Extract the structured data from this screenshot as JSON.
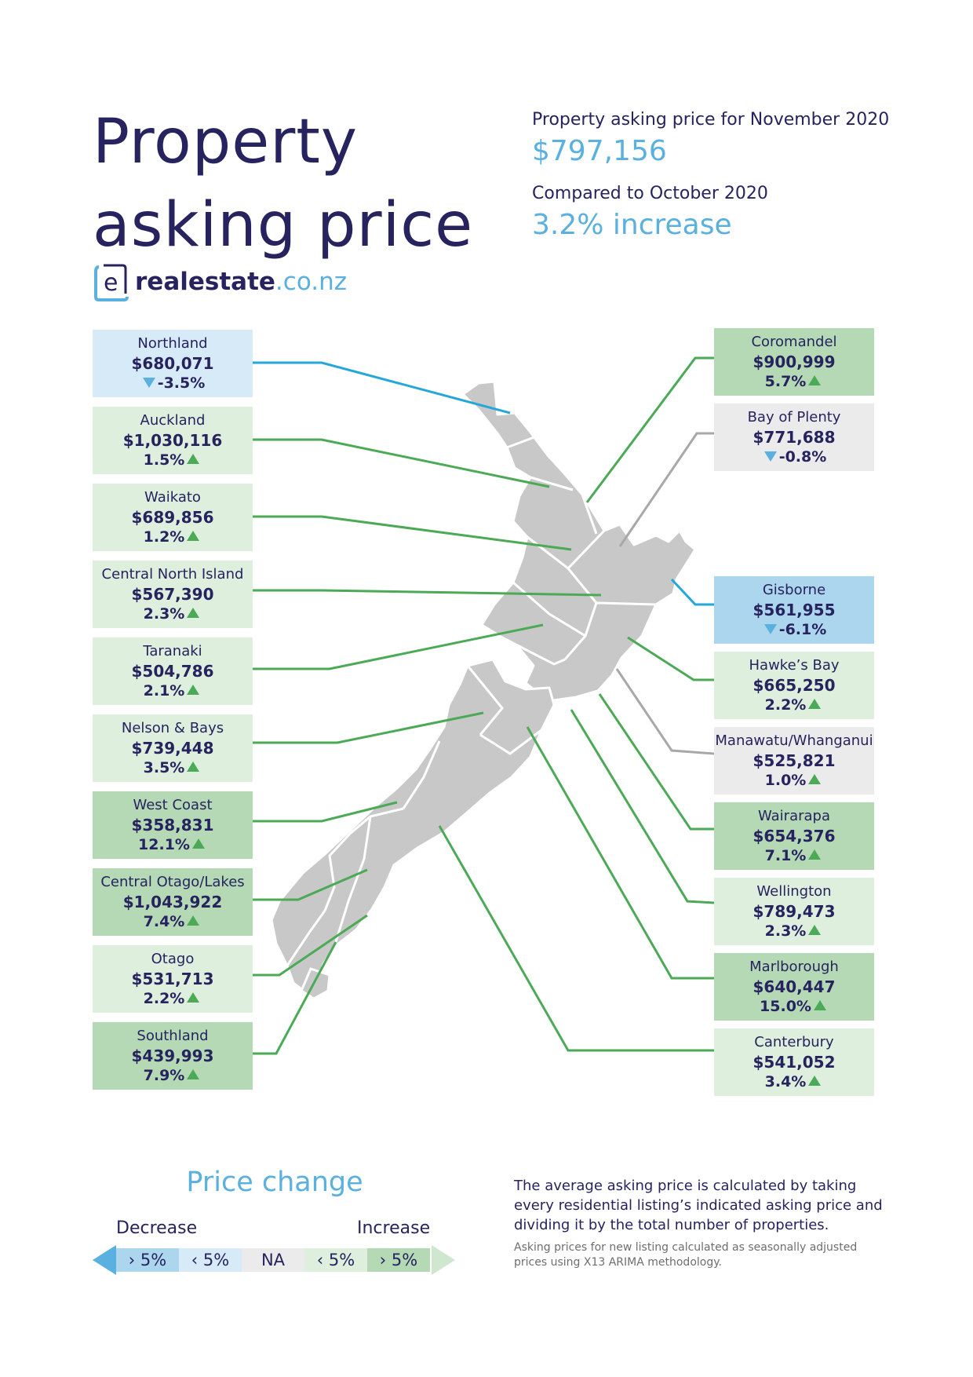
{
  "title": {
    "line1": "Property",
    "line2": "asking price"
  },
  "summary": {
    "asking_label": "Property asking price for November 2020",
    "asking_value": "$797,156",
    "compare_label": "Compared to October 2020",
    "compare_value": "3.2% increase"
  },
  "logo": {
    "name": "realestate",
    "tld": ".co.nz",
    "mark": "e"
  },
  "colors": {
    "decrease_strong": "#acd5ee",
    "decrease_mild": "#d6eaf7",
    "na": "#ebebeb",
    "increase_mild": "#deefdd",
    "increase_strong": "#b5d9b5",
    "line_green": "#4caa57",
    "line_blue": "#25a7d9",
    "line_grey": "#a8a8a8",
    "map_fill": "#c8c8c8",
    "navy": "#26235f",
    "accent_blue": "#5ab0df"
  },
  "regions_left": [
    {
      "name": "Northland",
      "price": "$680,071",
      "change": "-3.5%",
      "direction": "down",
      "category": "decrease_mild"
    },
    {
      "name": "Auckland",
      "price": "$1,030,116",
      "change": "1.5%",
      "direction": "up",
      "category": "increase_mild"
    },
    {
      "name": "Waikato",
      "price": "$689,856",
      "change": "1.2%",
      "direction": "up",
      "category": "increase_mild"
    },
    {
      "name": "Central North Island",
      "price": "$567,390",
      "change": "2.3%",
      "direction": "up",
      "category": "increase_mild"
    },
    {
      "name": "Taranaki",
      "price": "$504,786",
      "change": "2.1%",
      "direction": "up",
      "category": "increase_mild"
    },
    {
      "name": "Nelson & Bays",
      "price": "$739,448",
      "change": "3.5%",
      "direction": "up",
      "category": "increase_mild"
    },
    {
      "name": "West Coast",
      "price": "$358,831",
      "change": "12.1%",
      "direction": "up",
      "category": "increase_strong"
    },
    {
      "name": "Central Otago/Lakes",
      "price": "$1,043,922",
      "change": "7.4%",
      "direction": "up",
      "category": "increase_strong"
    },
    {
      "name": "Otago",
      "price": "$531,713",
      "change": "2.2%",
      "direction": "up",
      "category": "increase_mild"
    },
    {
      "name": "Southland",
      "price": "$439,993",
      "change": "7.9%",
      "direction": "up",
      "category": "increase_strong"
    }
  ],
  "regions_right": [
    {
      "name": "Coromandel",
      "price": "$900,999",
      "change": "5.7%",
      "direction": "up",
      "category": "increase_strong"
    },
    {
      "name": "Bay of Plenty",
      "price": "$771,688",
      "change": "-0.8%",
      "direction": "down",
      "category": "na"
    },
    {
      "name": "Gisborne",
      "price": "$561,955",
      "change": "-6.1%",
      "direction": "down",
      "category": "decrease_strong"
    },
    {
      "name": "Hawke’s Bay",
      "price": "$665,250",
      "change": "2.2%",
      "direction": "up",
      "category": "increase_mild"
    },
    {
      "name": "Manawatu/Whanganui",
      "price": "$525,821",
      "change": "1.0%",
      "direction": "up",
      "category": "na"
    },
    {
      "name": "Wairarapa",
      "price": "$654,376",
      "change": "7.1%",
      "direction": "up",
      "category": "increase_strong"
    },
    {
      "name": "Wellington",
      "price": "$789,473",
      "change": "2.3%",
      "direction": "up",
      "category": "increase_mild"
    },
    {
      "name": "Marlborough",
      "price": "$640,447",
      "change": "15.0%",
      "direction": "up",
      "category": "increase_strong"
    },
    {
      "name": "Canterbury",
      "price": "$541,052",
      "change": "3.4%",
      "direction": "up",
      "category": "increase_mild"
    }
  ],
  "legend": {
    "title": "Price change",
    "decrease_label": "Decrease",
    "increase_label": "Increase",
    "cells": [
      "› 5%",
      "‹ 5%",
      "NA",
      "‹ 5%",
      "› 5%"
    ]
  },
  "note": {
    "main": "The average asking price is calculated by taking every residential listing’s indicated asking price and dividing it by the total number of properties.",
    "small": "Asking prices for new listing calculated as seasonally adjusted prices using X13 ARIMA methodology."
  }
}
